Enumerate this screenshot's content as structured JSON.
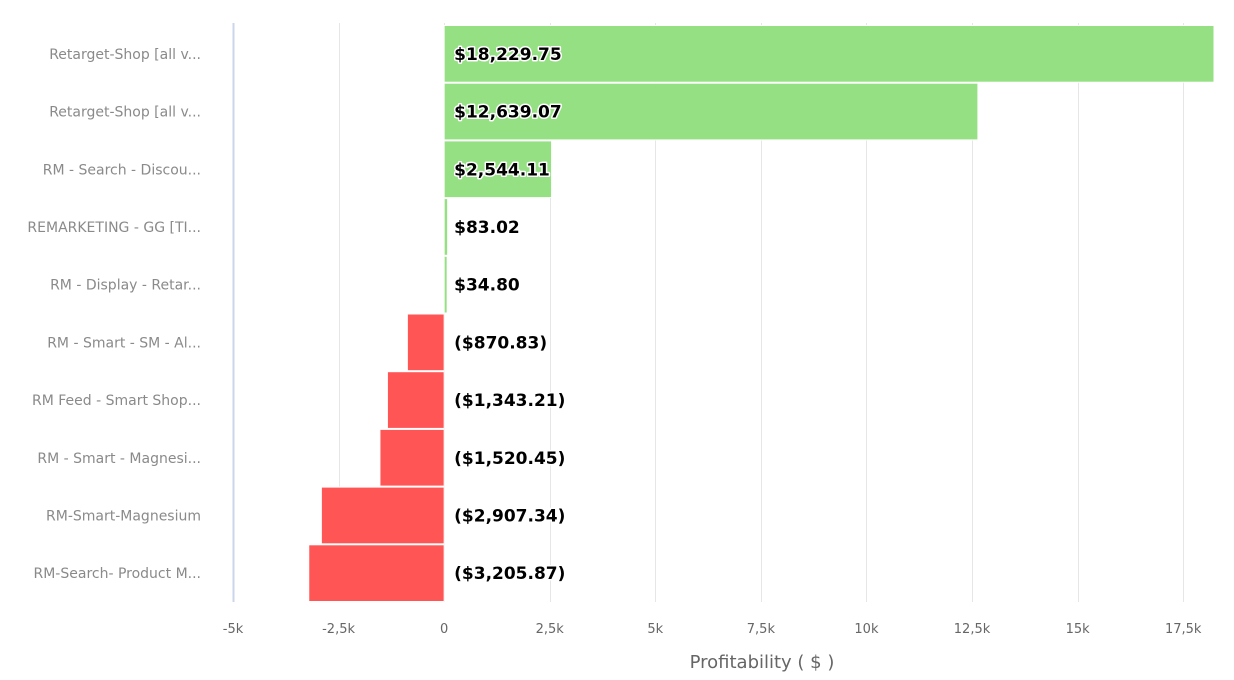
{
  "chart_data": {
    "type": "bar",
    "orientation": "horizontal",
    "title": "",
    "xlabel": "Profitability ( $ )",
    "ylabel": "",
    "categories": [
      "Retarget-Shop [all v...",
      "Retarget-Shop [all v...",
      "RM - Search - Discou...",
      "REMARKETING - GG [TI...",
      "RM - Display - Retar...",
      "RM - Smart - SM - Al...",
      "RM Feed - Smart Shop...",
      "RM - Smart - Magnesi...",
      "RM-Smart-Magnesium",
      "RM-Search- Product M..."
    ],
    "values": [
      18229.75,
      12639.07,
      2544.11,
      83.02,
      34.8,
      -870.83,
      -1343.21,
      -1520.45,
      -2907.34,
      -3205.87
    ],
    "data_labels": [
      "$18,229.75",
      "$12,639.07",
      "$2,544.11",
      "$83.02",
      "$34.80",
      "($870.83)",
      "($1,343.21)",
      "($1,520.45)",
      "($2,907.34)",
      "($3,205.87)"
    ],
    "xlim": [
      -5000,
      18229.75
    ],
    "xticks": [
      -5000,
      -2500,
      0,
      2500,
      5000,
      7500,
      10000,
      12500,
      15000,
      17500
    ],
    "xtick_labels": [
      "-5k",
      "-2,5k",
      "0",
      "2,5k",
      "5k",
      "7,5k",
      "10k",
      "12,5k",
      "15k",
      "17,5k"
    ],
    "grid": true,
    "legend": "none",
    "colors": {
      "positive": "#94e083",
      "negative": "#ff5555",
      "grid": "#e6e6e6",
      "axis": "#ccd6eb"
    }
  }
}
